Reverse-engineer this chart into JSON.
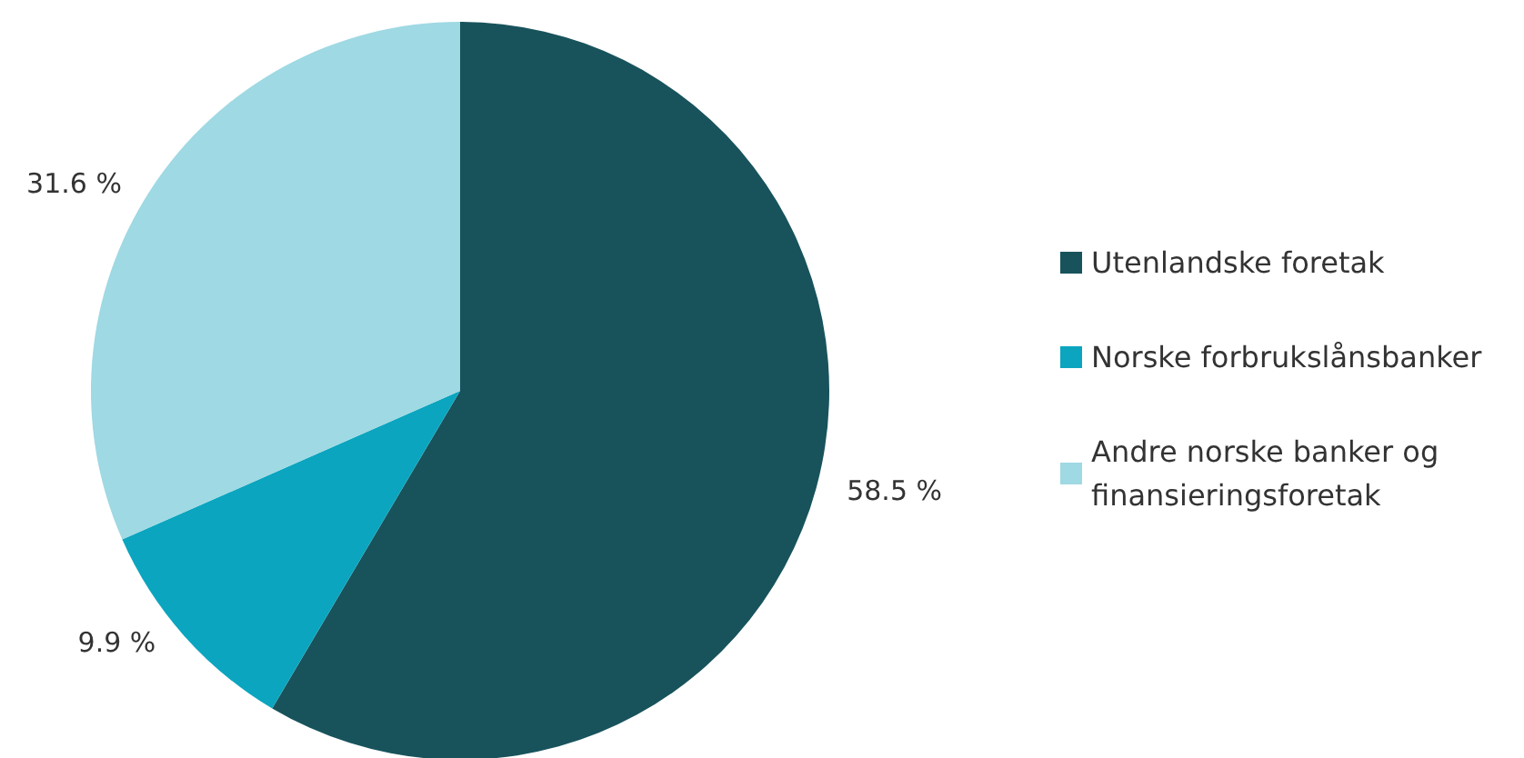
{
  "chart_data": {
    "type": "pie",
    "categories": [
      "Utenlandske foretak",
      "Norske forbrukslånsbanker",
      "Andre norske banker og finansieringsforetak"
    ],
    "values": [
      58.5,
      9.9,
      31.6
    ],
    "colors": [
      "#18535c",
      "#0ba5bf",
      "#9fd9e3"
    ],
    "value_labels": [
      "58.5 %",
      "9.9 %",
      "31.6 %"
    ],
    "legend": "right"
  }
}
